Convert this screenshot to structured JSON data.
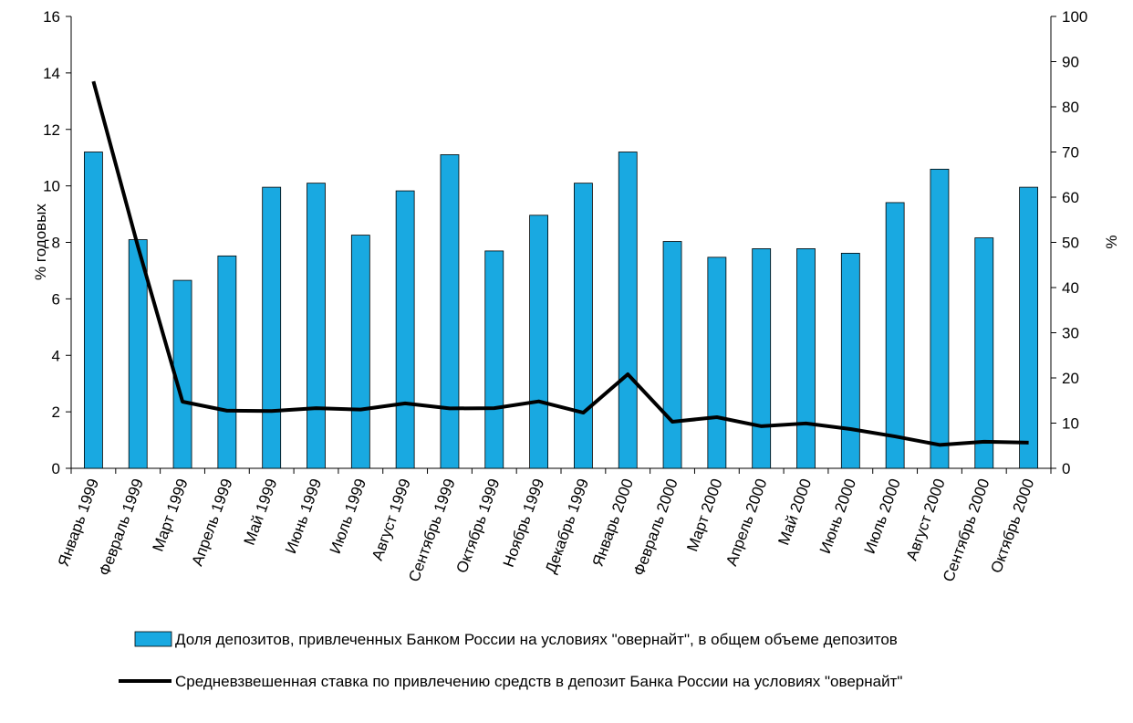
{
  "chart_data": {
    "type": "bar-line",
    "categories": [
      "Январь 1999",
      "Февраль 1999",
      "Март 1999",
      "Апрель 1999",
      "Май 1999",
      "Июнь 1999",
      "Июль 1999",
      "Август 1999",
      "Сентябрь 1999",
      "Октябрь 1999",
      "Ноябрь 1999",
      "Декабрь 1999",
      "Январь 2000",
      "Февраль 2000",
      "Март 2000",
      "Апрель 2000",
      "Май 2000",
      "Июнь 2000",
      "Июль 2000",
      "Август 2000",
      "Сентябрь 2000",
      "Октябрь 2000"
    ],
    "ylabel": "% годовых",
    "y2label": "%",
    "ylim": [
      0,
      16
    ],
    "yticks": [
      0,
      2,
      4,
      6,
      8,
      10,
      12,
      14,
      16
    ],
    "y2lim": [
      0,
      100
    ],
    "y2ticks": [
      0,
      10,
      20,
      30,
      40,
      50,
      60,
      70,
      80,
      90,
      100
    ],
    "series": [
      {
        "name": "Доля депозитов, привлеченных Банком России на условиях \"овернайт\", в общем объеме депозитов",
        "kind": "bar",
        "axis": "y2",
        "color": "#19a9e1",
        "values": [
          70,
          50.6,
          41.6,
          47,
          62.2,
          63.1,
          51.6,
          61.4,
          69.4,
          48.1,
          56,
          63.1,
          70,
          50.2,
          46.7,
          48.6,
          48.6,
          47.6,
          58.8,
          66.2,
          51,
          62.2
        ]
      },
      {
        "name": "Средневзвешенная ставка по привлечению средств в депозит Банка России  на условиях \"овернайт\"",
        "kind": "line",
        "axis": "y",
        "color": "#000000",
        "values": [
          13.7,
          7.85,
          2.36,
          2.04,
          2.03,
          2.13,
          2.08,
          2.3,
          2.12,
          2.13,
          2.37,
          1.97,
          3.33,
          1.65,
          1.81,
          1.49,
          1.59,
          1.39,
          1.13,
          0.83,
          0.94,
          0.91
        ]
      }
    ]
  }
}
